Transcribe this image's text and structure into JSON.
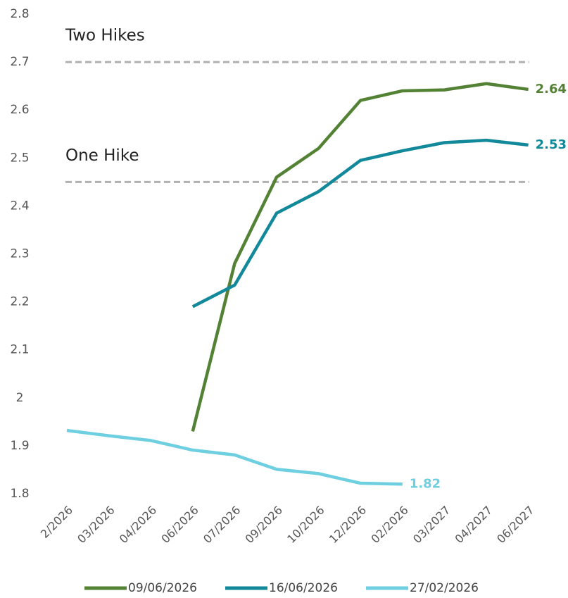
{
  "chart_data": {
    "type": "line",
    "categories": [
      "2/2026",
      "03/2026",
      "04/2026",
      "06/2026",
      "07/2026",
      "09/2026",
      "10/2026",
      "12/2026",
      "02/2026",
      "03/2027",
      "04/2027",
      "06/2027"
    ],
    "series": [
      {
        "name": "09/06/2026",
        "color": "#548235",
        "values": [
          null,
          null,
          null,
          1.93,
          2.28,
          2.46,
          2.52,
          2.62,
          2.64,
          2.642,
          2.655,
          2.643
        ],
        "value_labels": [
          null,
          null,
          null,
          null,
          null,
          null,
          null,
          null,
          null,
          null,
          null,
          "2.64"
        ]
      },
      {
        "name": "16/06/2026",
        "color": "#12899a",
        "values": [
          null,
          null,
          null,
          2.19,
          2.235,
          2.385,
          2.43,
          2.495,
          2.515,
          2.532,
          2.537,
          2.527
        ],
        "value_labels": [
          null,
          null,
          null,
          null,
          null,
          null,
          null,
          null,
          null,
          null,
          null,
          "2.53"
        ]
      },
      {
        "name": "27/02/2026",
        "color": "#6dcfe0",
        "values": [
          1.932,
          1.921,
          1.911,
          1.891,
          1.881,
          1.851,
          1.842,
          1.822,
          1.82,
          null,
          null,
          null
        ],
        "value_labels": [
          null,
          null,
          null,
          null,
          null,
          null,
          null,
          null,
          "1.82",
          null,
          null,
          null
        ]
      }
    ],
    "reference_lines": [
      {
        "label": "Two Hikes",
        "value": 2.7,
        "color": "#b0b0b0"
      },
      {
        "label": "One Hike",
        "value": 2.45,
        "color": "#b0b0b0"
      }
    ],
    "ylim": [
      1.8,
      2.8
    ],
    "yticks": [
      1.8,
      1.9,
      2,
      2.1,
      2.2,
      2.3,
      2.4,
      2.5,
      2.6,
      2.7,
      2.8
    ],
    "grid": false,
    "legend": "bottom"
  }
}
